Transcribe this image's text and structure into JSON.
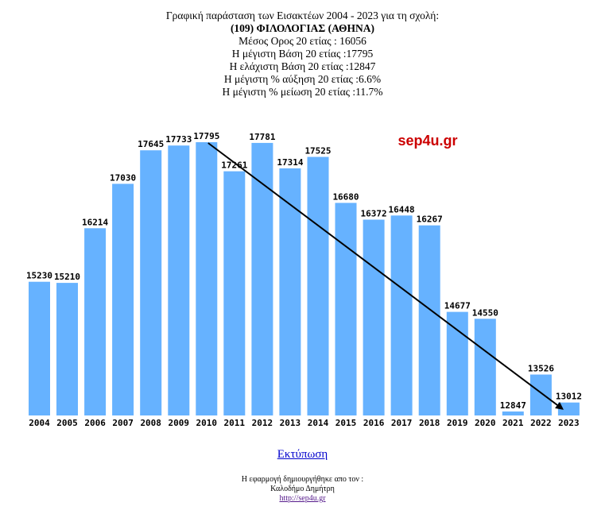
{
  "header": {
    "title": "Γραφική παράσταση των Εισακτέων 2004 - 2023 για τη σχολή:",
    "school": "(109) ΦΙΛΟΛΟΓΙΑΣ (ΑΘΗΝΑ)",
    "average": "Μέσος Ορος 20 ετίας : 16056",
    "max_base": "Η μέγιστη Βάση 20 ετίας :17795",
    "min_base": "Η ελάχιστη Βάση 20 ετίας :12847",
    "max_increase": "Η μέγιστη % αύξηση 20 ετίας :6.6%",
    "max_decrease": "Η μέγιστη % μείωση 20 ετίας :11.7%"
  },
  "watermark": "sep4u.gr",
  "chart_data": {
    "type": "bar",
    "categories": [
      "2004",
      "2005",
      "2006",
      "2007",
      "2008",
      "2009",
      "2010",
      "2011",
      "2012",
      "2013",
      "2014",
      "2015",
      "2016",
      "2017",
      "2018",
      "2019",
      "2020",
      "2021",
      "2022",
      "2023"
    ],
    "values": [
      15230,
      15210,
      16214,
      17030,
      17645,
      17733,
      17795,
      17261,
      17781,
      17314,
      17525,
      16680,
      16372,
      16448,
      16267,
      14677,
      14550,
      12847,
      13526,
      13012
    ],
    "title": "Γραφική παράσταση των Εισακτέων 2004 - 2023",
    "xlabel": "",
    "ylabel": "",
    "bar_color": "#66b2ff",
    "trend_arrow": {
      "from_category": "2010",
      "to_category": "2023",
      "color": "#000000"
    },
    "grid": false
  },
  "print_link": "Εκτύπωση",
  "footer": {
    "line1": "Η εφαρμογή δημιουργήθηκε απο τον :",
    "line2": "Καλοδήμο Δημήτρη",
    "link": "http://sep4u.gr"
  }
}
